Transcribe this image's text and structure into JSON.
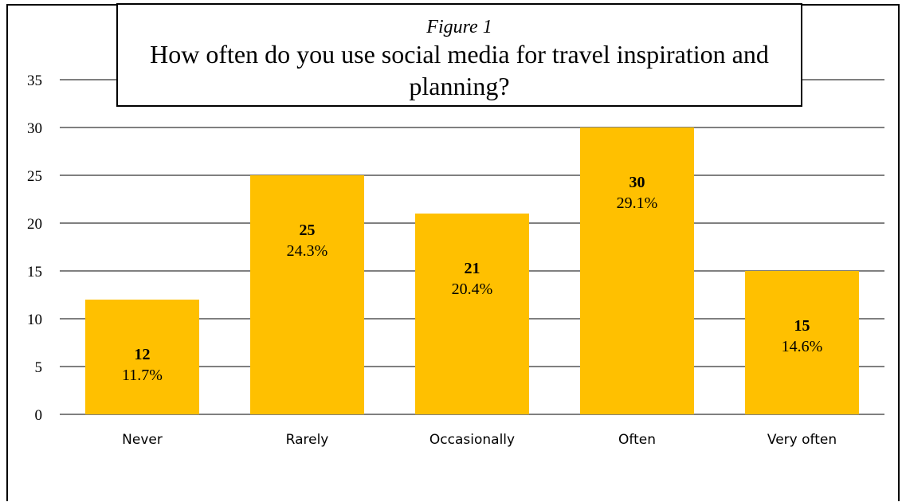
{
  "chart_data": {
    "type": "bar",
    "figure_label": "Figure 1",
    "title": "How often do you use social media for travel inspiration and planning?",
    "categories": [
      "Never",
      "Rarely",
      "Occasionally",
      "Often",
      "Very often"
    ],
    "values": [
      12,
      25,
      21,
      30,
      15
    ],
    "percent_labels": [
      "11.7%",
      "24.3%",
      "20.4%",
      "29.1%",
      "14.6%"
    ],
    "y_ticks": [
      0,
      5,
      10,
      15,
      20,
      25,
      30,
      35
    ],
    "ylim": [
      0,
      35
    ],
    "grid": true,
    "bar_color": "#FFC000"
  }
}
